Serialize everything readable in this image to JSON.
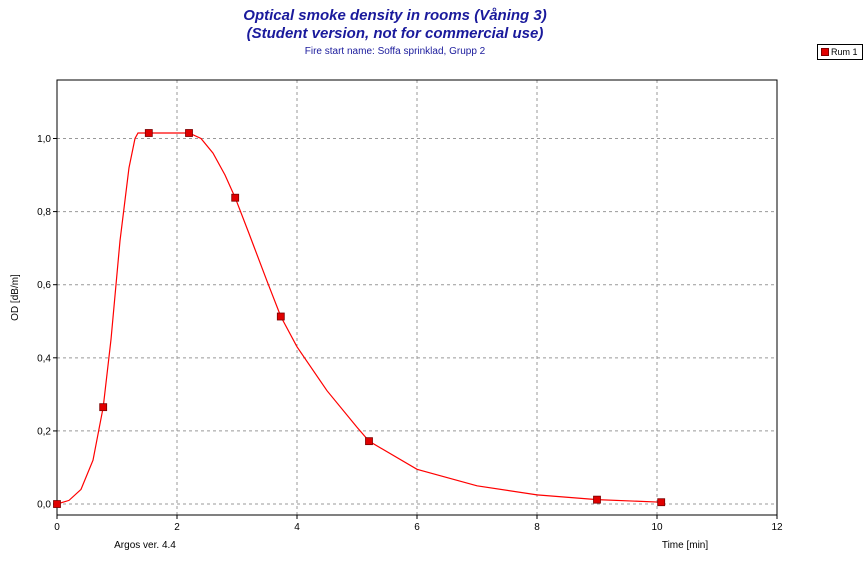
{
  "chart_data": {
    "type": "line",
    "title": "Optical smoke density in rooms   (Våning 3)",
    "subtitle": "(Student version, not for commercial use)",
    "fire_start": "Fire start name:  Soffa sprinklad, Grupp 2",
    "xlabel": "Time [min]",
    "ylabel": "OD [dB/m]",
    "footer_left": "Argos ver. 4.4",
    "xlim": [
      0,
      12
    ],
    "ylim": [
      -0.03,
      1.16
    ],
    "x_ticks": [
      0,
      2,
      4,
      6,
      8,
      10,
      12
    ],
    "y_ticks": [
      0.0,
      0.2,
      0.4,
      0.6,
      0.8,
      1.0
    ],
    "y_tick_labels": [
      "0,0",
      "0,2",
      "0,4",
      "0,6",
      "0,8",
      "1,0"
    ],
    "grid": true,
    "legend_position": "top-right",
    "series": [
      {
        "name": "Rum 1",
        "color": "#ff0000",
        "marker_color": "#e00000",
        "markers": [
          [
            0,
            0.0
          ],
          [
            0.77,
            0.265
          ],
          [
            1.53,
            1.015
          ],
          [
            2.2,
            1.015
          ],
          [
            2.97,
            0.838
          ],
          [
            3.73,
            0.513
          ],
          [
            5.2,
            0.172
          ],
          [
            9.0,
            0.012
          ],
          [
            10.07,
            0.005
          ]
        ],
        "curve": [
          [
            0,
            0.0
          ],
          [
            0.2,
            0.01
          ],
          [
            0.4,
            0.04
          ],
          [
            0.6,
            0.12
          ],
          [
            0.77,
            0.265
          ],
          [
            0.9,
            0.45
          ],
          [
            1.05,
            0.72
          ],
          [
            1.2,
            0.92
          ],
          [
            1.3,
            1.0
          ],
          [
            1.35,
            1.015
          ],
          [
            1.53,
            1.015
          ],
          [
            2.2,
            1.015
          ],
          [
            2.4,
            1.0
          ],
          [
            2.6,
            0.96
          ],
          [
            2.8,
            0.9
          ],
          [
            2.97,
            0.838
          ],
          [
            3.2,
            0.74
          ],
          [
            3.5,
            0.61
          ],
          [
            3.73,
            0.513
          ],
          [
            4.0,
            0.43
          ],
          [
            4.5,
            0.31
          ],
          [
            5.0,
            0.21
          ],
          [
            5.2,
            0.172
          ],
          [
            6.0,
            0.095
          ],
          [
            7.0,
            0.05
          ],
          [
            8.0,
            0.025
          ],
          [
            9.0,
            0.012
          ],
          [
            10.07,
            0.005
          ]
        ]
      }
    ]
  }
}
